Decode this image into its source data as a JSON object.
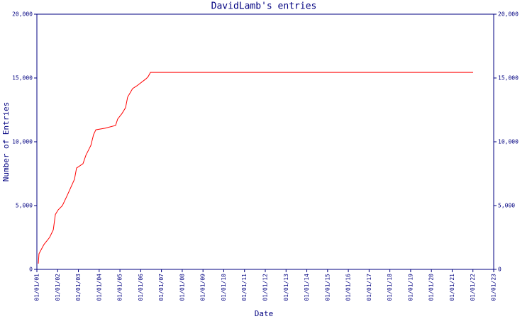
{
  "chart_data": {
    "type": "line",
    "title": "DavidLamb's entries",
    "x_label": "Date",
    "y_label": "Number of Entries",
    "x": [
      2001.07,
      2001.1,
      2001.34,
      2001.61,
      2001.79,
      2001.89,
      2002.02,
      2002.23,
      2002.47,
      2002.81,
      2002.91,
      2003.22,
      2003.36,
      2003.6,
      2003.73,
      2003.84,
      2004.28,
      2004.79,
      2004.89,
      2005.1,
      2005.27,
      2005.37,
      2005.61,
      2005.82,
      2006.26,
      2006.36,
      2006.47,
      2022.01
    ],
    "series": [
      {
        "color": "#ff0000",
        "values": [
          450,
          1220,
          1950,
          2500,
          3100,
          4300,
          4650,
          5000,
          5830,
          7060,
          7940,
          8280,
          8940,
          9720,
          10560,
          10940,
          11060,
          11280,
          11780,
          12220,
          12670,
          13500,
          14170,
          14390,
          14940,
          15110,
          15440,
          15440
        ]
      }
    ],
    "xlim": [
      2001,
      2023
    ],
    "xticks": [
      {
        "value": 2001,
        "label": "01/01/01"
      },
      {
        "value": 2002,
        "label": "01/01/02"
      },
      {
        "value": 2003,
        "label": "01/01/03"
      },
      {
        "value": 2004,
        "label": "01/01/04"
      },
      {
        "value": 2005,
        "label": "01/01/05"
      },
      {
        "value": 2006,
        "label": "01/01/06"
      },
      {
        "value": 2007,
        "label": "01/01/07"
      },
      {
        "value": 2008,
        "label": "01/01/08"
      },
      {
        "value": 2009,
        "label": "01/01/09"
      },
      {
        "value": 2010,
        "label": "01/01/10"
      },
      {
        "value": 2011,
        "label": "01/01/11"
      },
      {
        "value": 2012,
        "label": "01/01/12"
      },
      {
        "value": 2013,
        "label": "01/01/13"
      },
      {
        "value": 2014,
        "label": "01/01/14"
      },
      {
        "value": 2015,
        "label": "01/01/15"
      },
      {
        "value": 2016,
        "label": "01/01/16"
      },
      {
        "value": 2017,
        "label": "01/01/17"
      },
      {
        "value": 2018,
        "label": "01/01/18"
      },
      {
        "value": 2019,
        "label": "01/01/19"
      },
      {
        "value": 2020,
        "label": "01/01/20"
      },
      {
        "value": 2021,
        "label": "01/01/21"
      },
      {
        "value": 2022,
        "label": "01/01/22"
      },
      {
        "value": 2023,
        "label": "01/01/23"
      }
    ],
    "ylim": [
      0,
      20000
    ],
    "yticks": [
      0,
      {
        "value": 5000,
        "label": "5,000"
      },
      {
        "value": 10000,
        "label": "10,000"
      },
      {
        "value": 15000,
        "label": "15,000"
      },
      {
        "value": 20000,
        "label": "20,000"
      }
    ],
    "grid": false
  }
}
